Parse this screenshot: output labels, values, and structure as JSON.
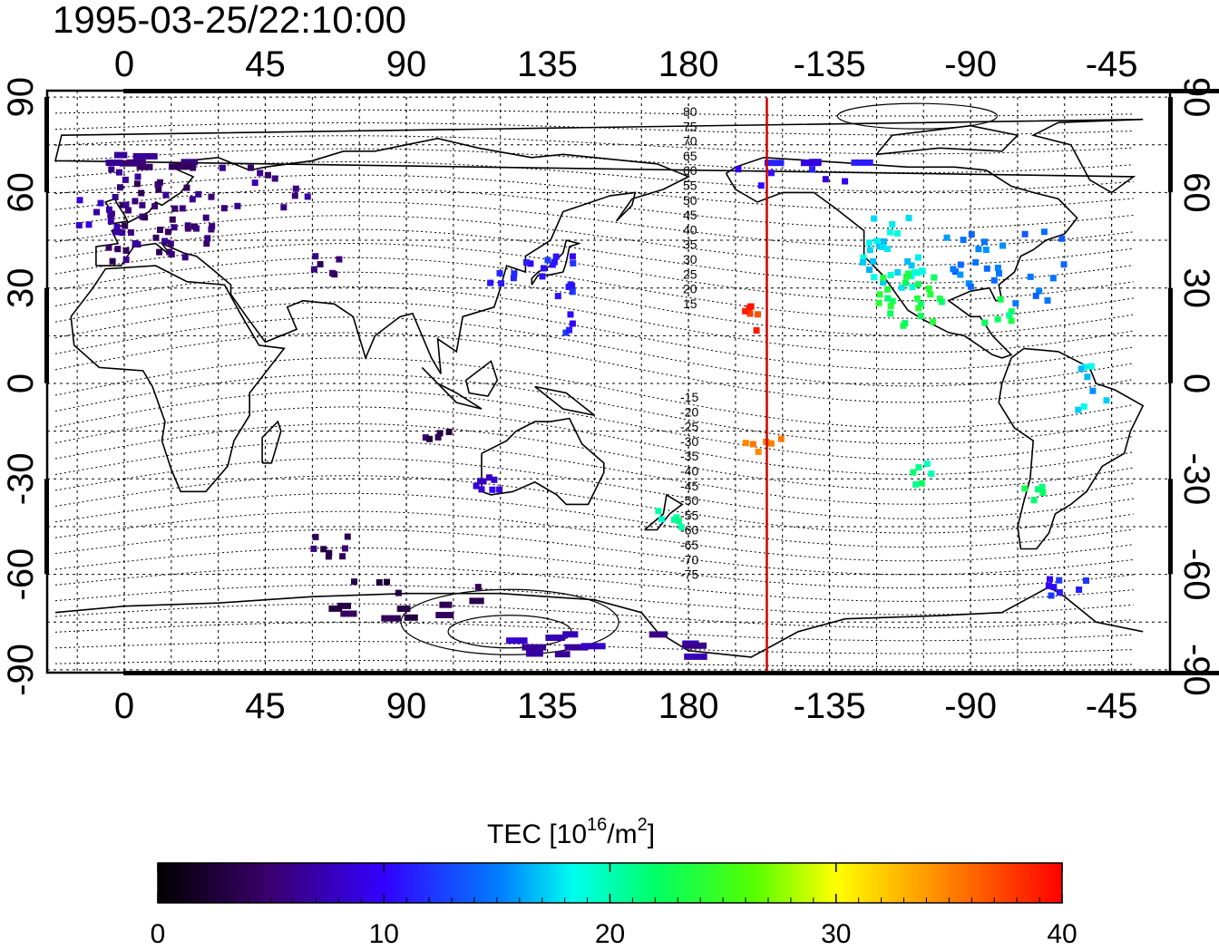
{
  "title": "1995-03-25/22:10:00",
  "colorbar": {
    "label": "TEC  [10",
    "label_exp": "16",
    "label_unit": "/m",
    "label_unit_exp": "2",
    "label_close": "]",
    "min": 0,
    "max": 40,
    "ticks": [
      "0",
      "10",
      "20",
      "30",
      "40"
    ]
  },
  "axes": {
    "x_tick_labels": [
      "0",
      "45",
      "90",
      "135",
      "180",
      "-135",
      "-90",
      "-45"
    ],
    "y_tick_labels": [
      "90",
      "60",
      "30",
      "0",
      "-30",
      "-60",
      "-90"
    ]
  },
  "terminator_longitude": -155,
  "contour_labels": {
    "north": [
      "80",
      "75",
      "70",
      "65",
      "60",
      "55",
      "50",
      "45",
      "40",
      "35",
      "30",
      "25",
      "20",
      "15"
    ],
    "south": [
      "-15",
      "-20",
      "-25",
      "-30",
      "-35",
      "-40",
      "-45",
      "-50",
      "-55",
      "-60",
      "-65",
      "-70",
      "-75"
    ]
  },
  "chart_data": {
    "type": "scatter",
    "title": "1995-03-25/22:10:00",
    "xlim": [
      -22,
      325
    ],
    "ylim": [
      -90,
      90
    ],
    "grid": true,
    "colorscale": "black-purple-blue-cyan-green-yellow-red",
    "value_label": "TEC [10^16/m^2]",
    "value_range": [
      0,
      40
    ],
    "clusters": [
      {
        "lon_min": -5,
        "lon_max": 30,
        "lat_min": 38,
        "lat_max": 72,
        "tec": 5,
        "n": 70
      },
      {
        "lon_min": -15,
        "lon_max": 0,
        "lat_min": 45,
        "lat_max": 58,
        "tec": 8,
        "n": 10
      },
      {
        "lon_min": 30,
        "lon_max": 60,
        "lat_min": 55,
        "lat_max": 70,
        "tec": 6,
        "n": 12
      },
      {
        "lon_min": 60,
        "lon_max": 72,
        "lat_min": 34,
        "lat_max": 42,
        "tec": 5,
        "n": 6
      },
      {
        "lon_min": 115,
        "lon_max": 145,
        "lat_min": 30,
        "lat_max": 40,
        "tec": 11,
        "n": 18
      },
      {
        "lon_min": 138,
        "lon_max": 145,
        "lat_min": 15,
        "lat_max": 30,
        "tec": 11,
        "n": 6
      },
      {
        "lon_min": 95,
        "lon_max": 105,
        "lat_min": -20,
        "lat_max": -10,
        "tec": 4,
        "n": 5
      },
      {
        "lon_min": 112,
        "lon_max": 120,
        "lat_min": -35,
        "lat_max": -28,
        "tec": 9,
        "n": 8
      },
      {
        "lon_min": 165,
        "lon_max": 178,
        "lat_min": -48,
        "lat_max": -40,
        "tec": 20,
        "n": 6
      },
      {
        "lon_min": 60,
        "lon_max": 75,
        "lat_min": -55,
        "lat_max": -47,
        "tec": 4,
        "n": 8
      },
      {
        "lon_min": 65,
        "lon_max": 115,
        "lat_min": -75,
        "lat_max": -62,
        "tec": 3,
        "n": 14
      },
      {
        "lon_min": 125,
        "lon_max": 185,
        "lat_min": -88,
        "lat_max": -78,
        "tec": 7,
        "n": 12
      },
      {
        "lon_min": 198,
        "lon_max": 205,
        "lat_min": 15,
        "lat_max": 25,
        "tec": 38,
        "n": 7
      },
      {
        "lon_min": 197,
        "lon_max": 212,
        "lat_min": -22,
        "lat_max": -17,
        "tec": 34,
        "n": 6
      },
      {
        "lon_min": 190,
        "lon_max": 240,
        "lat_min": 60,
        "lat_max": 70,
        "tec": 10,
        "n": 10
      },
      {
        "lon_min": 235,
        "lon_max": 255,
        "lat_min": 30,
        "lat_max": 55,
        "tec": 18,
        "n": 30
      },
      {
        "lon_min": 240,
        "lon_max": 262,
        "lat_min": 18,
        "lat_max": 35,
        "tec": 23,
        "n": 25
      },
      {
        "lon_min": 262,
        "lon_max": 300,
        "lat_min": 25,
        "lat_max": 48,
        "tec": 15,
        "n": 28
      },
      {
        "lon_min": 270,
        "lon_max": 285,
        "lat_min": 18,
        "lat_max": 28,
        "tec": 22,
        "n": 6
      },
      {
        "lon_min": 298,
        "lon_max": 322,
        "lat_min": -10,
        "lat_max": 10,
        "tec": 17,
        "n": 8
      },
      {
        "lon_min": 250,
        "lon_max": 260,
        "lat_min": -32,
        "lat_max": -25,
        "tec": 21,
        "n": 6
      },
      {
        "lon_min": 285,
        "lon_max": 295,
        "lat_min": -38,
        "lat_max": -30,
        "tec": 22,
        "n": 5
      },
      {
        "lon_min": 290,
        "lon_max": 315,
        "lat_min": -67,
        "lat_max": -60,
        "tec": 11,
        "n": 8
      }
    ]
  }
}
